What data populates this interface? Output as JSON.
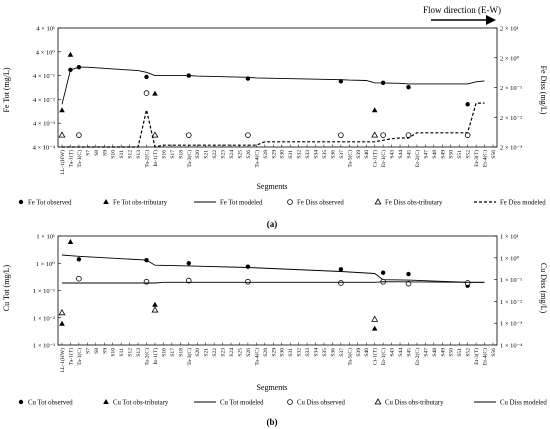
{
  "flow_label": "Flow direction (E-W)",
  "segments": [
    "LL-1(HW)",
    "Ta-1(T)",
    "Ta-1(C)",
    "S7",
    "S8",
    "S9",
    "S10",
    "S11",
    "S12",
    "S13",
    "Ta-2(C)",
    "In-1(T)",
    "S16",
    "S17",
    "S18",
    "Ta-3(C)",
    "S20",
    "S21",
    "S22",
    "S23",
    "S24",
    "S25",
    "S26",
    "Ta-4(C)",
    "S28",
    "S29",
    "S30",
    "S31",
    "S32",
    "S33",
    "S34",
    "S35",
    "S36",
    "S37",
    "Ta-5(C)",
    "S39",
    "S40",
    "Ct-1(T)",
    "Et-1(C)",
    "S43",
    "S44",
    "S45",
    "Et-2(C)",
    "S47",
    "S48",
    "S49",
    "S50",
    "S51",
    "S52",
    "Et-3(T)",
    "Et-4(C)",
    "S56"
  ],
  "chart_data": [
    {
      "id": "a",
      "panel_label": "(a)",
      "type": "line",
      "xlabel": "Segments",
      "ylabel_left": "Fe Tot (mg/L)",
      "ylabel_right": "Fe Diss (mg/L)",
      "yticks_left": [
        "4 × 10⁻⁴",
        "4 × 10⁻³",
        "4 × 10⁻²",
        "4 × 10⁻¹",
        "4 × 10⁰",
        "4 × 10¹"
      ],
      "yticks_right": [
        "2 × 10⁻³",
        "2 × 10⁻²",
        "2 × 10⁻¹",
        "2 × 10⁰",
        "2 × 10¹"
      ],
      "ylim_left": [
        0.0004,
        40
      ],
      "ylim_right": [
        0.002,
        20
      ],
      "series": [
        {
          "name": "Fe Tot observed",
          "marker": "dot",
          "axis": "left",
          "x": [
            1,
            2,
            10,
            15,
            22,
            33,
            38,
            41,
            48
          ],
          "y": [
            0.7,
            0.9,
            0.35,
            0.4,
            0.3,
            0.23,
            0.2,
            0.13,
            0.025
          ]
        },
        {
          "name": "Fe Tot obs-tributary",
          "marker": "triangle",
          "axis": "left",
          "x": [
            0,
            1,
            11,
            37
          ],
          "y": [
            0.014,
            3.0,
            0.07,
            0.014
          ]
        },
        {
          "name": "Fe Tot modeled",
          "line": "solid",
          "axis": "left",
          "x": [
            0,
            1,
            2,
            3,
            9,
            10,
            11,
            15,
            16,
            22,
            23,
            33,
            34,
            36,
            37,
            40,
            41,
            48,
            49,
            50
          ],
          "y": [
            0.025,
            0.7,
            0.9,
            0.9,
            0.65,
            0.55,
            0.4,
            0.4,
            0.38,
            0.34,
            0.32,
            0.27,
            0.26,
            0.25,
            0.2,
            0.19,
            0.18,
            0.18,
            0.22,
            0.24
          ]
        },
        {
          "name": "Fe Diss observed",
          "marker": "circle",
          "axis": "right",
          "x": [
            2,
            10,
            15,
            22,
            33,
            38,
            41,
            48
          ],
          "y": [
            0.005,
            0.13,
            0.005,
            0.005,
            0.005,
            0.005,
            0.005,
            0.005
          ]
        },
        {
          "name": "Fe Diss obs-tributary",
          "marker": "open-triangle",
          "axis": "right",
          "x": [
            0,
            11,
            37
          ],
          "y": [
            0.005,
            0.005,
            0.005
          ]
        },
        {
          "name": "Fe Diss modeled",
          "line": "dashed",
          "axis": "right",
          "x": [
            0,
            1,
            9,
            10,
            11,
            12,
            23,
            24,
            37,
            39,
            40,
            41,
            42,
            48,
            49,
            50
          ],
          "y": [
            0.002,
            0.002,
            0.002,
            0.035,
            0.002,
            0.0023,
            0.0023,
            0.003,
            0.003,
            0.0038,
            0.004,
            0.004,
            0.006,
            0.006,
            0.06,
            0.06
          ]
        }
      ],
      "legend": [
        "Fe Tot observed",
        "Fe Tot obs-tributary",
        "Fe Tot modeled",
        "Fe Diss observed",
        "Fe Diss obs-tributary",
        "Fe Diss modeled"
      ]
    },
    {
      "id": "b",
      "panel_label": "(b)",
      "type": "line",
      "xlabel": "Segments",
      "ylabel_left": "Cu Tot (mg/L)",
      "ylabel_right": "Cu Diss (mg/L)",
      "yticks_left": [
        "1 × 10⁻³",
        "1 × 10⁻²",
        "1 × 10⁻¹",
        "1 × 10⁰",
        "1 × 10¹"
      ],
      "yticks_right": [
        "1 × 10⁻⁴",
        "1 × 10⁻³",
        "1 × 10⁻²",
        "1 × 10⁻¹",
        "1 × 10⁰",
        "1 × 10¹"
      ],
      "ylim_left": [
        0.001,
        10
      ],
      "ylim_right": [
        0.0001,
        10
      ],
      "series": [
        {
          "name": "Cu Tot observed",
          "marker": "dot",
          "axis": "left",
          "x": [
            2,
            10,
            15,
            22,
            33,
            38,
            41,
            48
          ],
          "y": [
            1.4,
            1.3,
            1.0,
            0.75,
            0.6,
            0.45,
            0.4,
            0.15
          ]
        },
        {
          "name": "Cu Tot obs-tributary",
          "marker": "triangle",
          "axis": "left",
          "x": [
            0,
            1,
            11,
            37
          ],
          "y": [
            0.006,
            6.0,
            0.03,
            0.004
          ]
        },
        {
          "name": "Cu Tot modeled",
          "line": "solid",
          "axis": "left",
          "x": [
            0,
            1,
            2,
            10,
            11,
            15,
            22,
            33,
            37,
            38,
            41,
            48,
            49,
            50
          ],
          "y": [
            2.0,
            1.9,
            1.8,
            1.3,
            0.85,
            0.8,
            0.7,
            0.5,
            0.42,
            0.25,
            0.24,
            0.2,
            0.2,
            0.2
          ]
        },
        {
          "name": "Cu Diss observed",
          "marker": "circle",
          "axis": "right",
          "x": [
            2,
            10,
            15,
            22,
            33,
            38,
            41,
            48
          ],
          "y": [
            0.11,
            0.08,
            0.09,
            0.08,
            0.07,
            0.08,
            0.065,
            0.07
          ]
        },
        {
          "name": "Cu Diss obs-tributary",
          "marker": "open-triangle",
          "axis": "right",
          "x": [
            0,
            11,
            37
          ],
          "y": [
            0.003,
            0.004,
            0.0015
          ]
        },
        {
          "name": "Cu Diss modeled",
          "line": "solid",
          "axis": "right",
          "x": [
            0,
            11,
            12,
            37,
            38,
            48,
            50
          ],
          "y": [
            0.07,
            0.07,
            0.075,
            0.075,
            0.08,
            0.075,
            0.075
          ]
        }
      ],
      "legend": [
        "Cu Tot observed",
        "Cu Tot obs-tributary",
        "Cu Tot modeled",
        "Cu Diss observed",
        "Cu Diss obs-tributary",
        "Cu Diss modeled"
      ]
    }
  ]
}
